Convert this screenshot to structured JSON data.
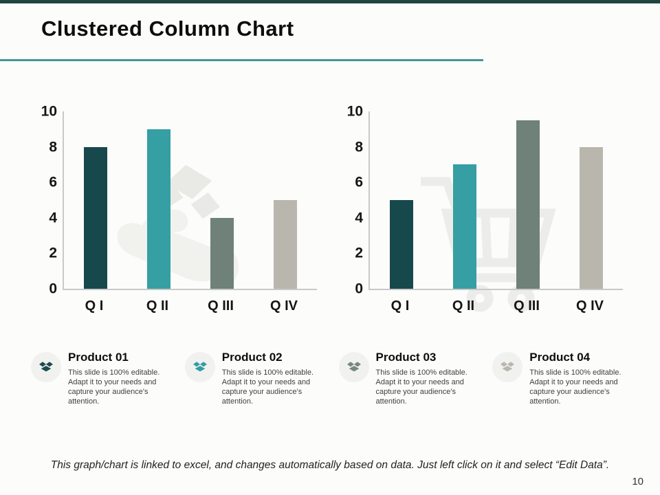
{
  "header": {
    "title": "Clustered Column Chart"
  },
  "chart_data": [
    {
      "type": "bar",
      "title": "",
      "categories": [
        "Q I",
        "Q II",
        "Q III",
        "Q IV"
      ],
      "values": [
        8,
        9,
        4,
        5
      ],
      "xlabel": "",
      "ylabel": "",
      "ylim": [
        0,
        10
      ],
      "yticks": [
        0,
        2,
        4,
        6,
        8,
        10
      ],
      "grid": false,
      "legend": "none",
      "bar_colors": [
        "#17484c",
        "#359fa3",
        "#6f8179",
        "#b9b6ad"
      ],
      "watermark": "hand-gift-box-icon"
    },
    {
      "type": "bar",
      "title": "",
      "categories": [
        "Q I",
        "Q II",
        "Q III",
        "Q IV"
      ],
      "values": [
        5,
        7,
        9.5,
        8
      ],
      "xlabel": "",
      "ylabel": "",
      "ylim": [
        0,
        10
      ],
      "yticks": [
        0,
        2,
        4,
        6,
        8,
        10
      ],
      "grid": false,
      "legend": "none",
      "bar_colors": [
        "#17484c",
        "#359fa3",
        "#6f8179",
        "#b9b6ad"
      ],
      "watermark": "shopping-cart-icon"
    }
  ],
  "products": [
    {
      "title": "Product 01",
      "description": "This slide is 100% editable. Adapt it to your needs and capture your audience's attention.",
      "icon": "open-box-icon",
      "color": "#1d4b4e"
    },
    {
      "title": "Product 02",
      "description": "This slide is 100% editable. Adapt it to your needs and capture your audience's attention.",
      "icon": "open-box-icon",
      "color": "#2f9fa4"
    },
    {
      "title": "Product 03",
      "description": "This slide is 100% editable. Adapt it to your needs and capture your audience's attention.",
      "icon": "open-box-icon",
      "color": "#75877f"
    },
    {
      "title": "Product 04",
      "description": "This slide is 100% editable. Adapt it to your needs and capture your audience's attention.",
      "icon": "open-box-icon",
      "color": "#b9b6ad"
    }
  ],
  "footer": {
    "note": "This graph/chart is linked to excel, and changes automatically based on data. Just left click on it and select “Edit Data”.",
    "page_number": "10"
  },
  "theme": {
    "accent": "#3f9798",
    "top_bar": "#214440",
    "axis_line": "#c9c9c9",
    "watermark_fill": "#ededea",
    "badge_bg": "#f1f1ef"
  }
}
